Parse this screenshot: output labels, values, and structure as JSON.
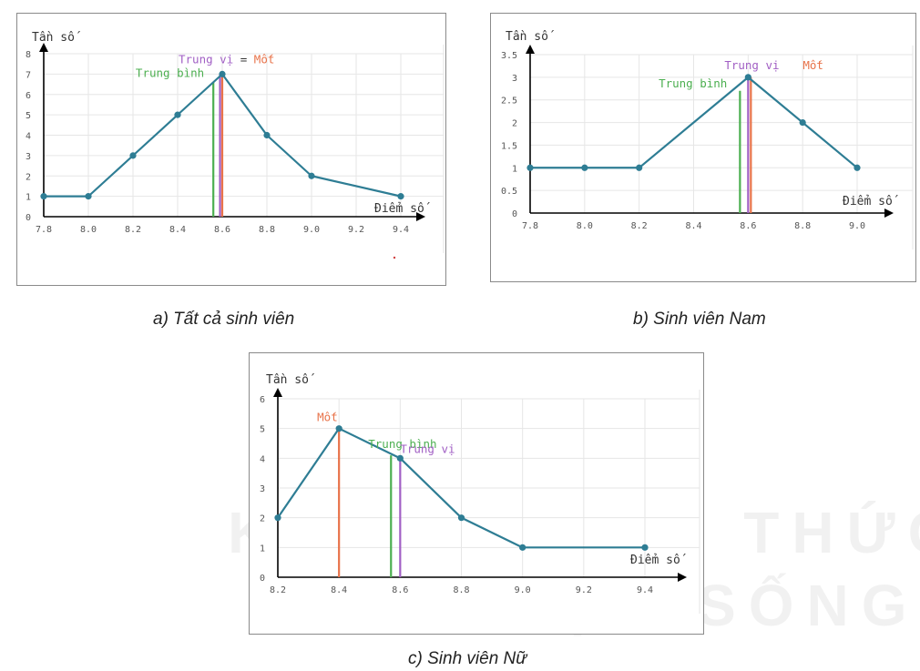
{
  "watermark": {
    "line1": "KẾT NỐI TRI THỨC",
    "line2": "VỚI CUỘC SỐNG"
  },
  "captions": {
    "a": "a) Tất cả sinh viên",
    "b": "b) Sinh viên Nam",
    "c": "c) Sinh viên Nữ"
  },
  "colors": {
    "line": "#2e7d94",
    "mean": "#4caf50",
    "median": "#a15fc4",
    "mode": "#e8734a",
    "axis": "#000000",
    "grid": "#e6e6e6"
  },
  "chart_data": [
    {
      "id": "a",
      "type": "line",
      "ylabel": "Tần số",
      "xlabel": "Điểm số",
      "xlim": [
        7.8,
        9.4
      ],
      "ylim": [
        0,
        8
      ],
      "x_ticks": [
        "7.8",
        "8.0",
        "8.2",
        "8.4",
        "8.6",
        "8.8",
        "9.0",
        "9.2",
        "9.4"
      ],
      "y_ticks": [
        "0",
        "1",
        "2",
        "3",
        "4",
        "5",
        "6",
        "7",
        "8"
      ],
      "x": [
        7.8,
        8.0,
        8.2,
        8.4,
        8.6,
        8.8,
        9.0,
        9.4
      ],
      "y": [
        1,
        1,
        3,
        5,
        7,
        4,
        2,
        1
      ],
      "mean": {
        "label": "Trung bình",
        "x": 8.56,
        "height": 6.6
      },
      "median": {
        "label": "Trung vị",
        "x": 8.59,
        "height": 7
      },
      "mode": {
        "label": "Mốt",
        "x": 8.6,
        "height": 7
      },
      "combined_label": {
        "median": "Trung vị",
        "eq": " = ",
        "mode": "Mốt"
      }
    },
    {
      "id": "b",
      "type": "line",
      "ylabel": "Tần số",
      "xlabel": "Điểm số",
      "xlim": [
        7.8,
        9.0
      ],
      "ylim": [
        0,
        3.5
      ],
      "x_ticks": [
        "7.8",
        "8.0",
        "8.2",
        "8.4",
        "8.6",
        "8.8",
        "9.0"
      ],
      "y_ticks": [
        "0",
        "0.5",
        "1",
        "1.5",
        "2",
        "2.5",
        "3",
        "3.5"
      ],
      "x": [
        7.8,
        8.0,
        8.2,
        8.6,
        8.8,
        9.0
      ],
      "y": [
        1,
        1,
        1,
        3,
        2,
        1
      ],
      "mean": {
        "label": "Trung bình",
        "x": 8.57,
        "height": 2.7
      },
      "median": {
        "label": "Trung vị",
        "x": 8.6,
        "height": 3
      },
      "mode": {
        "label": "Mốt",
        "x": 8.61,
        "height": 3
      }
    },
    {
      "id": "c",
      "type": "line",
      "ylabel": "Tần số",
      "xlabel": "Điểm số",
      "xlim": [
        8.2,
        9.4
      ],
      "ylim": [
        0,
        6
      ],
      "x_ticks": [
        "8.2",
        "8.4",
        "8.6",
        "8.8",
        "9.0",
        "9.2",
        "9.4"
      ],
      "y_ticks": [
        "0",
        "1",
        "2",
        "3",
        "4",
        "5",
        "6"
      ],
      "x": [
        8.2,
        8.4,
        8.6,
        8.8,
        9.0,
        9.4
      ],
      "y": [
        2,
        5,
        4,
        2,
        1,
        1
      ],
      "mean": {
        "label": "Trung bình",
        "x": 8.57,
        "height": 4.1
      },
      "median": {
        "label": "Trung vị",
        "x": 8.6,
        "height": 4
      },
      "mode": {
        "label": "Mốt",
        "x": 8.4,
        "height": 5
      }
    }
  ]
}
